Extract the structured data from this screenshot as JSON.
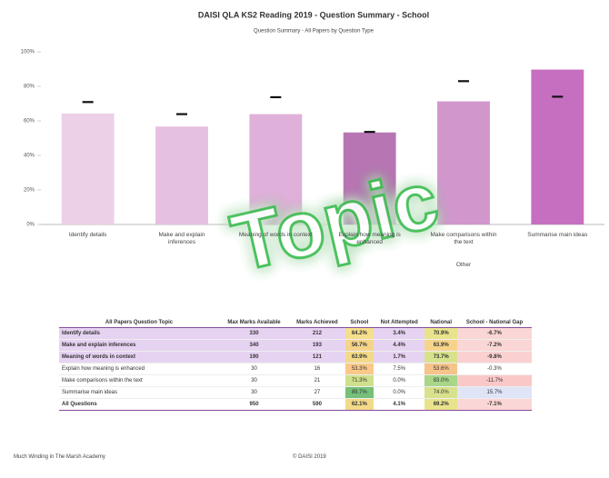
{
  "chart_data": {
    "type": "bar",
    "title": "DAISI QLA KS2 Reading 2019 - Question Summary - School",
    "subtitle": "Question Summary - All Papers by Question Type",
    "categories": [
      "Identify details",
      "Make and explain inferences",
      "Meaning of words in context",
      "Explain how meaning is enhanced",
      "Make comparisons within the text",
      "Summarise main ideas"
    ],
    "group_label": "Other",
    "series": [
      {
        "values": [
          64.2,
          56.7,
          63.9,
          53.3,
          71.3,
          89.7
        ],
        "colors": [
          "#ecd0e8",
          "#e6c0e1",
          "#dfb0d9",
          "#b776b3",
          "#d197cc",
          "#c66fc1"
        ]
      },
      {
        "values": [
          70.9,
          63.9,
          73.7,
          53.6,
          83.0,
          74.0
        ],
        "color": "#111111",
        "marker": "dash"
      }
    ],
    "ylim": [
      0,
      100
    ],
    "yticks": [
      {
        "value": 0,
        "label": "0%"
      },
      {
        "value": 20,
        "label": "20%"
      },
      {
        "value": 40,
        "label": "40%"
      },
      {
        "value": 60,
        "label": "60%"
      },
      {
        "value": 80,
        "label": "80%"
      },
      {
        "value": 100,
        "label": "100%"
      }
    ],
    "grid": false,
    "watermark": "Topic"
  },
  "table": {
    "header": [
      "All Papers Question Topic",
      "Max Marks Available",
      "Marks Achieved",
      "School",
      "Not Attempted",
      "National",
      "School - National Gap"
    ],
    "rows": [
      [
        "Identify details",
        "330",
        "212",
        "64.2%",
        "3.4%",
        "70.9%",
        "-6.7%"
      ],
      [
        "Make and explain inferences",
        "340",
        "193",
        "56.7%",
        "4.4%",
        "63.9%",
        "-7.2%"
      ],
      [
        "Meaning of words in context",
        "190",
        "121",
        "63.9%",
        "1.7%",
        "73.7%",
        "-9.8%"
      ],
      [
        "Explain how meaning is enhanced",
        "30",
        "16",
        "53.3%",
        "7.5%",
        "53.6%",
        "-0.3%"
      ],
      [
        "Make comparisons within the text",
        "30",
        "21",
        "71.3%",
        "0.0%",
        "83.0%",
        "-11.7%"
      ],
      [
        "Summarise main ideas",
        "30",
        "27",
        "89.7%",
        "0.0%",
        "74.0%",
        "15.7%"
      ],
      [
        "All Questions",
        "950",
        "590",
        "62.1%",
        "4.1%",
        "69.2%",
        "-7.1%"
      ]
    ],
    "school_colors": [
      "#f6df8a",
      "#f5d48a",
      "#f3da88",
      "#f9c98a",
      "#cfe08c",
      "#76c07a",
      "#f3da88"
    ],
    "national_colors": [
      "#e9e48c",
      "#f5d48a",
      "#d8e28c",
      "#f6c38a",
      "#a9d689",
      "#d8e28c",
      "#e9e48c"
    ],
    "gap_colors": [
      "#fbd6d6",
      "#fbd6d6",
      "#fbd0d0",
      "#ffffff",
      "#fbc8c8",
      "#dfe4f7",
      "#fbd6d6"
    ]
  },
  "footer": {
    "left": "Much Winding in The Marsh Academy",
    "center": "© DAISI 2019"
  }
}
